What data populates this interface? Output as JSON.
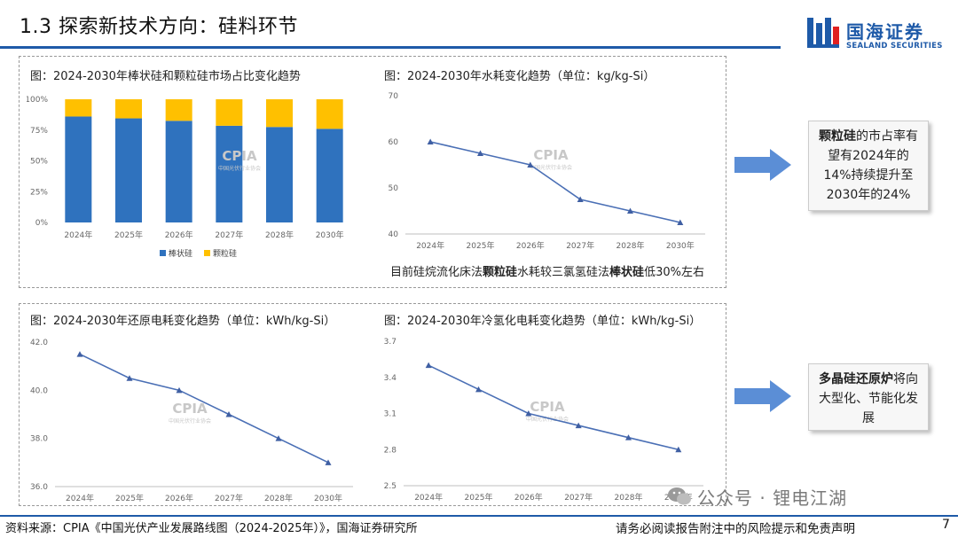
{
  "header": {
    "title": "1.3 探索新技术方向：硅料环节",
    "logo_cn": "国海证券",
    "logo_en": "SEALAND SECURITIES"
  },
  "watermark": {
    "text": "CPIA",
    "subtext": "中国光伏行业协会"
  },
  "charts": {
    "share": {
      "title": "图：2024-2030年棒状硅和颗粒硅市场占比变化趋势",
      "type": "stacked-bar",
      "categories": [
        "2024年",
        "2025年",
        "2026年",
        "2027年",
        "2028年",
        "2030年"
      ],
      "series": [
        {
          "name": "棒状硅",
          "color": "#2f72be",
          "values": [
            86,
            84.5,
            82.5,
            78.5,
            77.5,
            76
          ]
        },
        {
          "name": "颗粒硅",
          "color": "#ffc000",
          "values": [
            14,
            15.5,
            17.5,
            21.5,
            22.5,
            24
          ]
        }
      ],
      "y_ticks": [
        "0%",
        "25%",
        "50%",
        "75%",
        "100%"
      ],
      "ylim": [
        0,
        100
      ]
    },
    "water": {
      "title": "图：2024-2030年水耗变化趋势（单位：kg/kg-Si）",
      "type": "line",
      "categories": [
        "2024年",
        "2025年",
        "2026年",
        "2027年",
        "2028年",
        "2030年"
      ],
      "values": [
        60,
        57.5,
        55,
        47.5,
        45,
        42.5
      ],
      "y_ticks": [
        "40",
        "50",
        "60",
        "70"
      ],
      "ylim": [
        40,
        70
      ]
    },
    "reduction": {
      "title": "图：2024-2030年还原电耗变化趋势（单位：kWh/kg-Si）",
      "type": "line",
      "categories": [
        "2024年",
        "2025年",
        "2026年",
        "2027年",
        "2028年",
        "2030年"
      ],
      "values": [
        41.5,
        40.5,
        40.0,
        39.0,
        38.0,
        37.0
      ],
      "y_ticks": [
        "36.0",
        "38.0",
        "40.0",
        "42.0"
      ],
      "ylim": [
        36,
        42
      ]
    },
    "hydrogenation": {
      "title": "图：2024-2030年冷氢化电耗变化趋势（单位：kWh/kg-Si）",
      "type": "line",
      "categories": [
        "2024年",
        "2025年",
        "2026年",
        "2027年",
        "2028年",
        "2030年"
      ],
      "values": [
        3.5,
        3.3,
        3.1,
        3.0,
        2.9,
        2.8
      ],
      "y_ticks": [
        "2.5",
        "2.8",
        "3.1",
        "3.4",
        "3.7"
      ],
      "ylim": [
        2.5,
        3.7
      ]
    }
  },
  "note": {
    "part1": "目前硅烷流化床法",
    "bold1": "颗粒硅",
    "part2": "水耗较三氯氢硅法",
    "bold2": "棒状硅",
    "part3": "低30%左右"
  },
  "callouts": {
    "first": {
      "bold": "颗粒硅",
      "rest": "的市占率有望有2024年的14%持续提升至2030年的24%"
    },
    "second": {
      "bold": "多晶硅还原炉",
      "rest": "将向大型化、节能化发展"
    }
  },
  "wechat": {
    "text": "公众号 · 锂电江湖"
  },
  "footer": {
    "source": "资料来源：CPIA《中国光伏产业发展路线图（2024-2025年）》，国海证券研究所",
    "disclaimer": "请务必阅读报告附注中的风险提示和免责声明",
    "page": "7"
  },
  "colors": {
    "brand": "#1e5aa8",
    "line": "#4a6fb5",
    "arrow": "#5b8ed6"
  }
}
